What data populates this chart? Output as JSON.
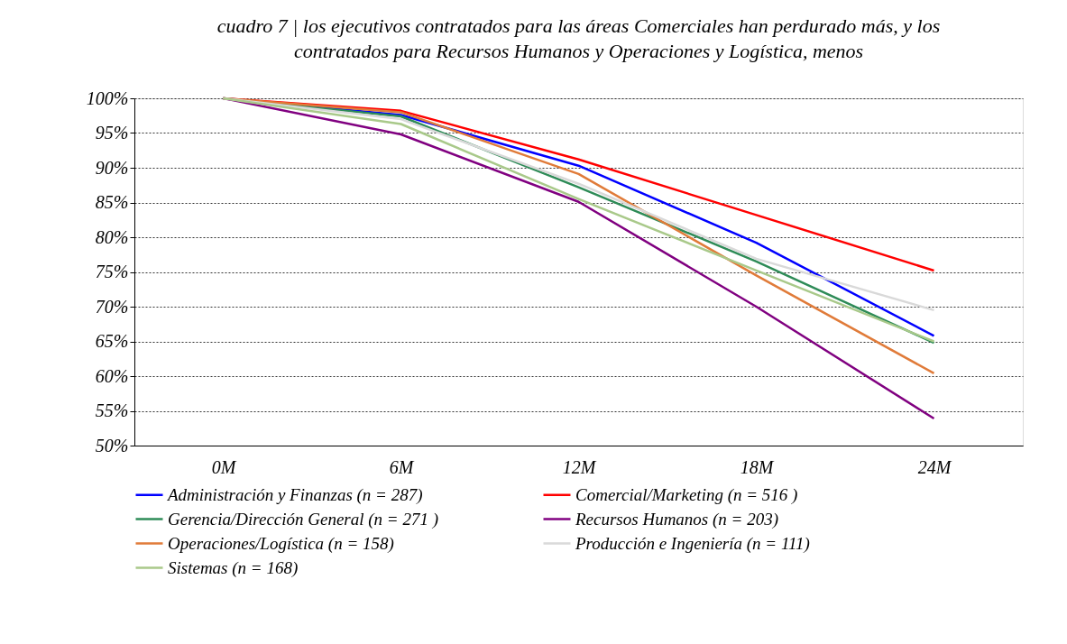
{
  "chart_data": {
    "type": "line",
    "title": "cuadro 7  |  los ejecutivos contratados para las áreas Comerciales han perdurado más, y los contratados para Recursos Humanos y Operaciones y Logística, menos",
    "categories": [
      "0M",
      "6M",
      "12M",
      "18M",
      "24M"
    ],
    "series": [
      {
        "name": "Administración y Finanzas (n = 287)",
        "color": "#0000ff",
        "values": [
          100,
          97.6,
          90.3,
          79.2,
          65.8
        ]
      },
      {
        "name": "Comercial/Marketing (n = 516 )",
        "color": "#ff0000",
        "values": [
          100,
          98.2,
          91.2,
          83.2,
          75.2
        ]
      },
      {
        "name": "Gerencia/Dirección General (n = 271 )",
        "color": "#2e8b57",
        "values": [
          100,
          97.4,
          87.2,
          76.5,
          64.8
        ]
      },
      {
        "name": "Recursos Humanos (n = 203)",
        "color": "#800080",
        "values": [
          100,
          94.8,
          85.1,
          70.0,
          53.9
        ]
      },
      {
        "name": "Operaciones/Logística (n = 158)",
        "color": "#e07b39",
        "values": [
          100,
          98.0,
          89.1,
          74.5,
          60.4
        ]
      },
      {
        "name": "Producción e Ingeniería (n = 111)",
        "color": "#d9d9d9",
        "values": [
          100,
          97.0,
          87.7,
          76.9,
          69.5
        ]
      },
      {
        "name": "Sistemas (n = 168)",
        "color": "#a9c98a",
        "values": [
          100,
          96.3,
          85.5,
          75.2,
          65.0
        ]
      }
    ],
    "ylim": [
      50,
      100
    ],
    "yticks": [
      {
        "value": 50,
        "label": "50%"
      },
      {
        "value": 55,
        "label": "55%"
      },
      {
        "value": 60,
        "label": "60%"
      },
      {
        "value": 65,
        "label": "65%"
      },
      {
        "value": 70,
        "label": "70%"
      },
      {
        "value": 75,
        "label": "75%"
      },
      {
        "value": 80,
        "label": "80%"
      },
      {
        "value": 85,
        "label": "85%"
      },
      {
        "value": 90,
        "label": "90%"
      },
      {
        "value": 95,
        "label": "95%"
      },
      {
        "value": 100,
        "label": "100%"
      }
    ],
    "grid": "y",
    "legend": "bottom",
    "marker": "none",
    "line_style": "solid"
  }
}
